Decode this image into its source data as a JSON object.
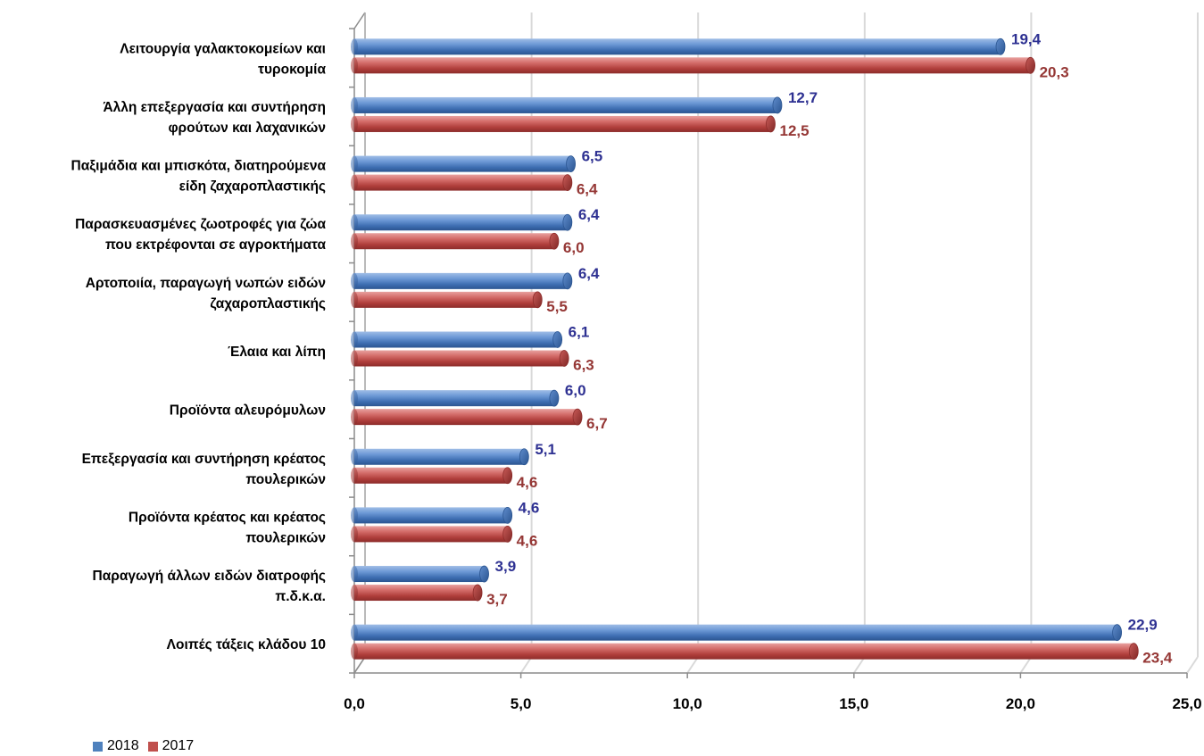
{
  "chart_data": {
    "type": "bar",
    "orientation": "horizontal",
    "title": "",
    "xlabel": "",
    "ylabel": "",
    "xlim": [
      0,
      25
    ],
    "ticks": [
      "0,0",
      "5,0",
      "10,0",
      "15,0",
      "20,0",
      "25,0"
    ],
    "tick_values": [
      0,
      5,
      10,
      15,
      20,
      25
    ],
    "grid": true,
    "legend_position": "bottom-left",
    "categories": [
      [
        "Λειτουργία γαλακτοκομείων και",
        "τυροκομία"
      ],
      [
        "Άλλη επεξεργασία και συντήρηση",
        "φρούτων και λαχανικών"
      ],
      [
        "Παξιμάδια και μπισκότα, διατηρούμενα",
        "είδη ζαχαροπλαστικής"
      ],
      [
        "Παρασκευασμένες ζωοτροφές για ζώα",
        "που εκτρέφονται σε αγροκτήματα"
      ],
      [
        "Αρτοποιία, παραγωγή νωπών ειδών",
        "ζαχαροπλαστικής"
      ],
      [
        "Έλαια και λίπη"
      ],
      [
        "Προϊόντα αλευρόμυλων"
      ],
      [
        "Επεξεργασία και συντήρηση κρέατος",
        "πουλερικών"
      ],
      [
        "Προϊόντα κρέατος και κρέατος",
        "πουλερικών"
      ],
      [
        "Παραγωγή άλλων ειδών διατροφής",
        "π.δ.κ.α."
      ],
      [
        "Λοιπές τάξεις κλάδου 10"
      ]
    ],
    "series": [
      {
        "name": "2018",
        "color": "#4f81bd",
        "label_color": "#2e3192",
        "values": [
          19.4,
          12.7,
          6.5,
          6.4,
          6.4,
          6.1,
          6.0,
          5.1,
          4.6,
          3.9,
          22.9
        ],
        "labels": [
          "19,4",
          "12,7",
          "6,5",
          "6,4",
          "6,4",
          "6,1",
          "6,0",
          "5,1",
          "4,6",
          "3,9",
          "22,9"
        ]
      },
      {
        "name": "2017",
        "color": "#c0504d",
        "label_color": "#953735",
        "values": [
          20.3,
          12.5,
          6.4,
          6.0,
          5.5,
          6.3,
          6.7,
          4.6,
          4.6,
          3.7,
          23.4
        ],
        "labels": [
          "20,3",
          "12,5",
          "6,4",
          "6,0",
          "5,5",
          "6,3",
          "6,7",
          "4,6",
          "4,6",
          "3,7",
          "23,4"
        ]
      }
    ]
  }
}
